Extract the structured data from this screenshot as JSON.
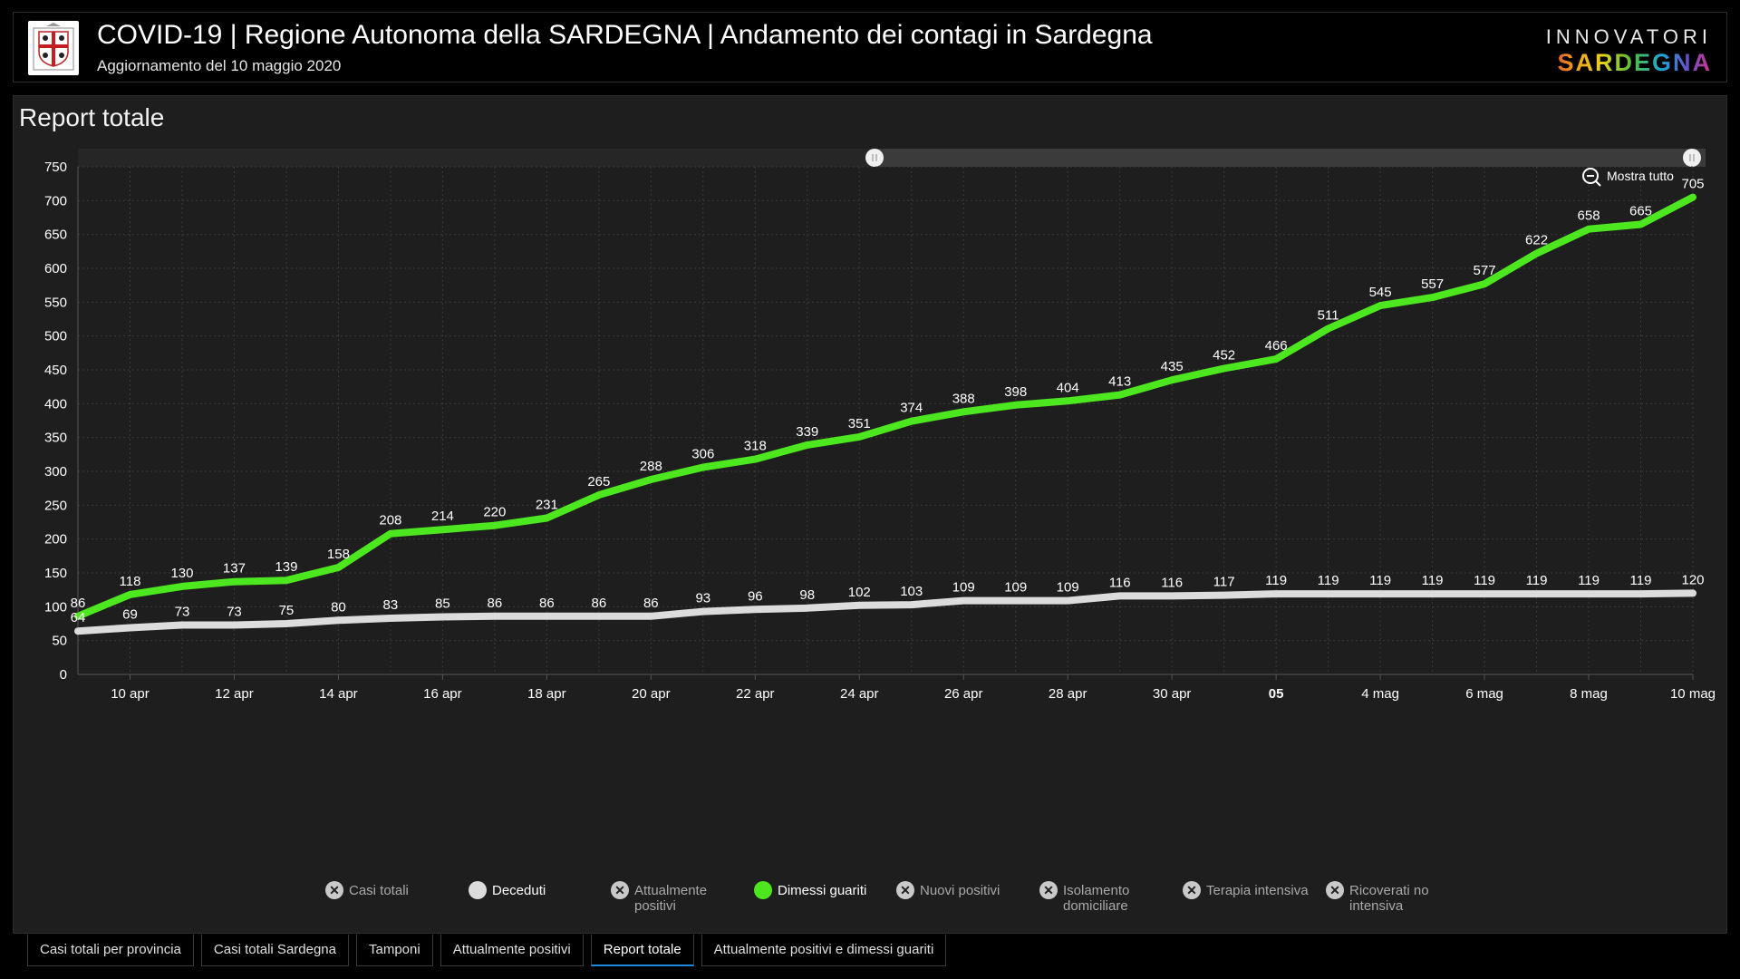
{
  "header": {
    "title": "COVID-19 | Regione Autonoma della SARDEGNA | Andamento dei contagi in Sardegna",
    "subtitle": "Aggiornamento del 10 maggio 2020",
    "brand_top": "INNOVATORI",
    "brand_bottom": "SARDEGNA"
  },
  "panel": {
    "title": "Report totale",
    "zoom_label": "Mostra tutto"
  },
  "colors": {
    "dimessi": "#4de71f",
    "deceduti": "#dcdcdc",
    "grid": "#3a3a3a",
    "axis": "#555555"
  },
  "legend": [
    {
      "label": "Casi totali",
      "active": false,
      "color": "#c9c9c9"
    },
    {
      "label": "Deceduti",
      "active": true,
      "color": "#dcdcdc"
    },
    {
      "label": "Attualmente positivi",
      "active": false,
      "color": "#c9c9c9"
    },
    {
      "label": "Dimessi guariti",
      "active": true,
      "color": "#4de71f"
    },
    {
      "label": "Nuovi positivi",
      "active": false,
      "color": "#c9c9c9"
    },
    {
      "label": "Isolamento domiciliare",
      "active": false,
      "color": "#c9c9c9"
    },
    {
      "label": "Terapia intensiva",
      "active": false,
      "color": "#c9c9c9"
    },
    {
      "label": "Ricoverati no intensiva",
      "active": false,
      "color": "#c9c9c9"
    }
  ],
  "tabs": [
    {
      "label": "Casi totali per provincia",
      "active": false
    },
    {
      "label": "Casi totali Sardegna",
      "active": false
    },
    {
      "label": "Tamponi",
      "active": false
    },
    {
      "label": "Attualmente positivi",
      "active": false
    },
    {
      "label": "Report totale",
      "active": true
    },
    {
      "label": "Attualmente positivi e dimessi guariti",
      "active": false
    }
  ],
  "chart_data": {
    "type": "line",
    "title": "Report totale",
    "ylim": [
      0,
      750
    ],
    "yticks": [
      0,
      50,
      100,
      150,
      200,
      250,
      300,
      350,
      400,
      450,
      500,
      550,
      600,
      650,
      700,
      750
    ],
    "xlim": [
      "2020-04-09",
      "2020-05-10"
    ],
    "x": [
      "2020-04-09",
      "2020-04-10",
      "2020-04-11",
      "2020-04-12",
      "2020-04-13",
      "2020-04-14",
      "2020-04-15",
      "2020-04-16",
      "2020-04-17",
      "2020-04-18",
      "2020-04-19",
      "2020-04-20",
      "2020-04-21",
      "2020-04-22",
      "2020-04-23",
      "2020-04-24",
      "2020-04-25",
      "2020-04-26",
      "2020-04-27",
      "2020-04-28",
      "2020-04-29",
      "2020-04-30",
      "2020-05-01",
      "2020-05-02",
      "2020-05-03",
      "2020-05-04",
      "2020-05-05",
      "2020-05-06",
      "2020-05-07",
      "2020-05-08",
      "2020-05-09",
      "2020-05-10"
    ],
    "xticks": [
      {
        "date": "2020-04-10",
        "label": "10 apr",
        "bold": false
      },
      {
        "date": "2020-04-12",
        "label": "12 apr",
        "bold": false
      },
      {
        "date": "2020-04-14",
        "label": "14 apr",
        "bold": false
      },
      {
        "date": "2020-04-16",
        "label": "16 apr",
        "bold": false
      },
      {
        "date": "2020-04-18",
        "label": "18 apr",
        "bold": false
      },
      {
        "date": "2020-04-20",
        "label": "20 apr",
        "bold": false
      },
      {
        "date": "2020-04-22",
        "label": "22 apr",
        "bold": false
      },
      {
        "date": "2020-04-24",
        "label": "24 apr",
        "bold": false
      },
      {
        "date": "2020-04-26",
        "label": "26 apr",
        "bold": false
      },
      {
        "date": "2020-04-28",
        "label": "28 apr",
        "bold": false
      },
      {
        "date": "2020-04-30",
        "label": "30 apr",
        "bold": false
      },
      {
        "date": "2020-05-02",
        "label": "05",
        "bold": true
      },
      {
        "date": "2020-05-04",
        "label": "4 mag",
        "bold": false
      },
      {
        "date": "2020-05-06",
        "label": "6 mag",
        "bold": false
      },
      {
        "date": "2020-05-08",
        "label": "8 mag",
        "bold": false
      },
      {
        "date": "2020-05-10",
        "label": "10 mag",
        "bold": false
      }
    ],
    "grid": true,
    "series": [
      {
        "name": "Dimessi guariti",
        "color": "#4de71f",
        "values": [
          86,
          118,
          130,
          137,
          139,
          158,
          208,
          214,
          220,
          231,
          265,
          288,
          306,
          318,
          339,
          351,
          374,
          388,
          398,
          404,
          413,
          435,
          452,
          466,
          511,
          545,
          557,
          577,
          622,
          658,
          665,
          705
        ]
      },
      {
        "name": "Deceduti",
        "color": "#dcdcdc",
        "values": [
          64,
          69,
          73,
          73,
          75,
          80,
          83,
          85,
          86,
          86,
          86,
          86,
          93,
          96,
          98,
          102,
          103,
          109,
          109,
          109,
          116,
          116,
          117,
          119,
          119,
          119,
          119,
          119,
          119,
          119,
          119,
          120
        ]
      }
    ]
  }
}
